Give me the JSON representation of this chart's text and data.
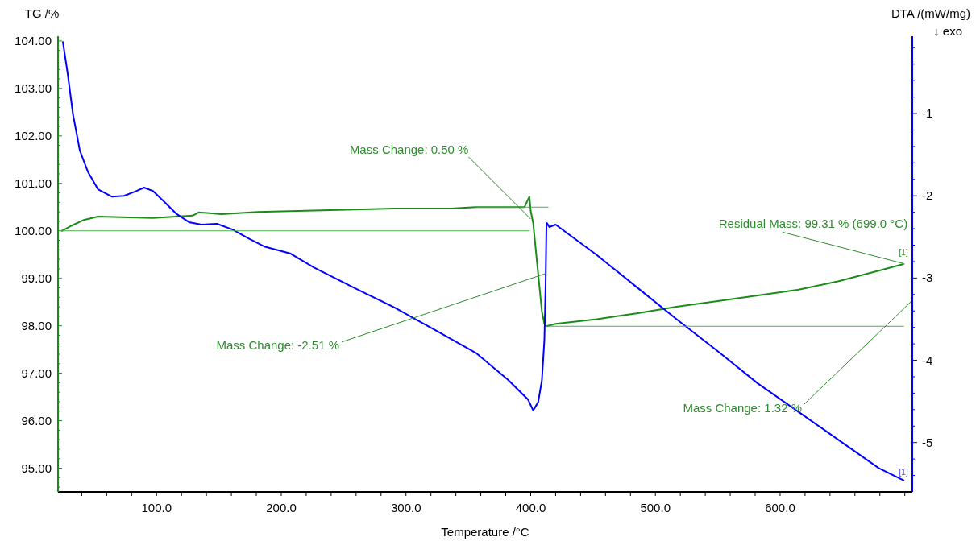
{
  "chart_data": {
    "type": "line",
    "xlabel": "Temperature /°C",
    "ylabel": "TG /%",
    "y2label": "DTA /(mW/mg)",
    "xlim": [
      21,
      706
    ],
    "xticks": [
      {
        "value": 40,
        "label": null
      },
      {
        "value": 60,
        "label": null
      },
      {
        "value": 80,
        "label": null
      },
      {
        "value": 100,
        "label": "100.0"
      },
      {
        "value": 120,
        "label": null
      },
      {
        "value": 140,
        "label": null
      },
      {
        "value": 160,
        "label": null
      },
      {
        "value": 180,
        "label": null
      },
      {
        "value": 200,
        "label": "200.0"
      },
      {
        "value": 220,
        "label": null
      },
      {
        "value": 240,
        "label": null
      },
      {
        "value": 260,
        "label": null
      },
      {
        "value": 280,
        "label": null
      },
      {
        "value": 300,
        "label": "300.0"
      },
      {
        "value": 320,
        "label": null
      },
      {
        "value": 340,
        "label": null
      },
      {
        "value": 360,
        "label": null
      },
      {
        "value": 380,
        "label": null
      },
      {
        "value": 400,
        "label": "400.0"
      },
      {
        "value": 420,
        "label": null
      },
      {
        "value": 440,
        "label": null
      },
      {
        "value": 460,
        "label": null
      },
      {
        "value": 480,
        "label": null
      },
      {
        "value": 500,
        "label": "500.0"
      },
      {
        "value": 520,
        "label": null
      },
      {
        "value": 540,
        "label": null
      },
      {
        "value": 560,
        "label": null
      },
      {
        "value": 580,
        "label": null
      },
      {
        "value": 600,
        "label": "600.0"
      },
      {
        "value": 620,
        "label": null
      },
      {
        "value": 640,
        "label": null
      },
      {
        "value": 660,
        "label": null
      },
      {
        "value": 680,
        "label": null
      },
      {
        "value": 700,
        "label": null
      }
    ],
    "ylim": [
      94.5,
      104.1
    ],
    "yticks": [
      {
        "value": 94.6,
        "label": null
      },
      {
        "value": 94.8,
        "label": null
      },
      {
        "value": 95,
        "label": "95.00"
      },
      {
        "value": 95.2,
        "label": null
      },
      {
        "value": 95.4,
        "label": null
      },
      {
        "value": 95.6,
        "label": null
      },
      {
        "value": 95.8,
        "label": null
      },
      {
        "value": 96,
        "label": "96.00"
      },
      {
        "value": 96.2,
        "label": null
      },
      {
        "value": 96.4,
        "label": null
      },
      {
        "value": 96.6,
        "label": null
      },
      {
        "value": 96.8,
        "label": null
      },
      {
        "value": 97,
        "label": "97.00"
      },
      {
        "value": 97.2,
        "label": null
      },
      {
        "value": 97.4,
        "label": null
      },
      {
        "value": 97.6,
        "label": null
      },
      {
        "value": 97.8,
        "label": null
      },
      {
        "value": 98,
        "label": "98.00"
      },
      {
        "value": 98.2,
        "label": null
      },
      {
        "value": 98.4,
        "label": null
      },
      {
        "value": 98.6,
        "label": null
      },
      {
        "value": 98.8,
        "label": null
      },
      {
        "value": 99,
        "label": "99.00"
      },
      {
        "value": 99.2,
        "label": null
      },
      {
        "value": 99.4,
        "label": null
      },
      {
        "value": 99.6,
        "label": null
      },
      {
        "value": 99.8,
        "label": null
      },
      {
        "value": 100,
        "label": "100.00"
      },
      {
        "value": 100.2,
        "label": null
      },
      {
        "value": 100.4,
        "label": null
      },
      {
        "value": 100.6,
        "label": null
      },
      {
        "value": 100.8,
        "label": null
      },
      {
        "value": 101,
        "label": "101.00"
      },
      {
        "value": 101.2,
        "label": null
      },
      {
        "value": 101.4,
        "label": null
      },
      {
        "value": 101.6,
        "label": null
      },
      {
        "value": 101.8,
        "label": null
      },
      {
        "value": 102,
        "label": "102.00"
      },
      {
        "value": 102.2,
        "label": null
      },
      {
        "value": 102.4,
        "label": null
      },
      {
        "value": 102.6,
        "label": null
      },
      {
        "value": 102.8,
        "label": null
      },
      {
        "value": 103,
        "label": "103.00"
      },
      {
        "value": 103.2,
        "label": null
      },
      {
        "value": 103.4,
        "label": null
      },
      {
        "value": 103.6,
        "label": null
      },
      {
        "value": 103.8,
        "label": null
      },
      {
        "value": 104,
        "label": "104.00"
      }
    ],
    "y2lim": [
      -5.6,
      -0.06
    ],
    "y2ticks": [
      {
        "value": -5.4,
        "label": null
      },
      {
        "value": -5.2,
        "label": null
      },
      -5,
      {
        "value": -4.8,
        "label": null
      },
      {
        "value": -4.6,
        "label": null
      },
      {
        "value": -4.4,
        "label": null
      },
      {
        "value": -4.2,
        "label": null
      },
      -4,
      {
        "value": -3.8,
        "label": null
      },
      {
        "value": -3.6,
        "label": null
      },
      {
        "value": -3.4,
        "label": null
      },
      {
        "value": -3.2,
        "label": null
      },
      -3,
      {
        "value": -2.8,
        "label": null
      },
      {
        "value": -2.6,
        "label": null
      },
      {
        "value": -2.4,
        "label": null
      },
      {
        "value": -2.2,
        "label": null
      },
      -2,
      {
        "value": -1.8,
        "label": null
      },
      {
        "value": -1.6,
        "label": null
      },
      {
        "value": -1.4,
        "label": null
      },
      {
        "value": -1.2,
        "label": null
      },
      -1,
      {
        "value": -0.8,
        "label": null
      },
      {
        "value": -0.6,
        "label": null
      },
      {
        "value": -0.4,
        "label": null
      },
      {
        "value": -0.2,
        "label": null
      }
    ],
    "grid": false,
    "series": [
      {
        "color": "#1a8c1a",
        "x": [
          24.3,
          32,
          41.7,
          53,
          97,
          129,
          134,
          152,
          181,
          226,
          291,
          336,
          356,
          395,
          399,
          400,
          402,
          405.5,
          409,
          411,
          412.6,
          420,
          453,
          485,
          517,
          550,
          582,
          615,
          647,
          679,
          699
        ],
        "values": [
          100.0,
          100.11,
          100.23,
          100.3,
          100.27,
          100.32,
          100.39,
          100.35,
          100.4,
          100.43,
          100.47,
          100.47,
          100.5,
          100.5,
          100.72,
          100.42,
          100.16,
          99.23,
          98.3,
          98.04,
          97.99,
          98.04,
          98.14,
          98.26,
          98.4,
          98.52,
          98.64,
          98.76,
          98.94,
          99.16,
          99.3
        ]
      },
      {
        "color": "#0000ff",
        "axis": "y2",
        "x": [
          24.9,
          28.8,
          33,
          38.5,
          45,
          53,
          64,
          74,
          84,
          90,
          97,
          106,
          116,
          126,
          136,
          148.5,
          161,
          174,
          187,
          207,
          226,
          258.6,
          291,
          323,
          356,
          382,
          398,
          402,
          406,
          409,
          411,
          412,
          412.6,
          413,
          415,
          420,
          453,
          485,
          517,
          550,
          582,
          615,
          647,
          679,
          699
        ],
        "values": [
          -0.13,
          -0.52,
          -1.01,
          -1.45,
          -1.71,
          -1.92,
          -2.01,
          -2.0,
          -1.94,
          -1.9,
          -1.94,
          -2.07,
          -2.22,
          -2.32,
          -2.35,
          -2.34,
          -2.41,
          -2.52,
          -2.62,
          -2.7,
          -2.87,
          -3.12,
          -3.36,
          -3.63,
          -3.91,
          -4.24,
          -4.48,
          -4.61,
          -4.51,
          -4.24,
          -3.75,
          -3.06,
          -2.38,
          -2.33,
          -2.38,
          -2.35,
          -2.72,
          -3.11,
          -3.5,
          -3.89,
          -4.28,
          -4.63,
          -4.97,
          -5.31,
          -5.46
        ]
      },
      {
        "color": "#4caf4c",
        "x": [
          24.3,
          399
        ],
        "values": [
          100.0,
          100.0
        ]
      },
      {
        "color": "#4caf4c",
        "x": [
          356,
          414
        ],
        "values": [
          100.5,
          100.5
        ]
      },
      {
        "color": "#4caf4c",
        "x": [
          412.6,
          699
        ],
        "values": [
          97.99,
          97.99
        ]
      }
    ],
    "annotations": [
      {
        "text": "Mass Change: 0.50 %",
        "x": 400,
        "y": 100.25
      },
      {
        "text": "Mass Change: -2.51 %",
        "x": 412,
        "y": 99.1
      },
      {
        "text": "Residual Mass: 99.31 % (699.0 °C)",
        "x": 699,
        "y": 99.31
      },
      "Mass Change: 1.32 %",
      {
        "text": "[1]",
        "x": 699,
        "y": 99.31
      },
      {
        "text": "[1]",
        "x": 699,
        "y": 94.85
      },
      "↓ exo"
    ]
  }
}
